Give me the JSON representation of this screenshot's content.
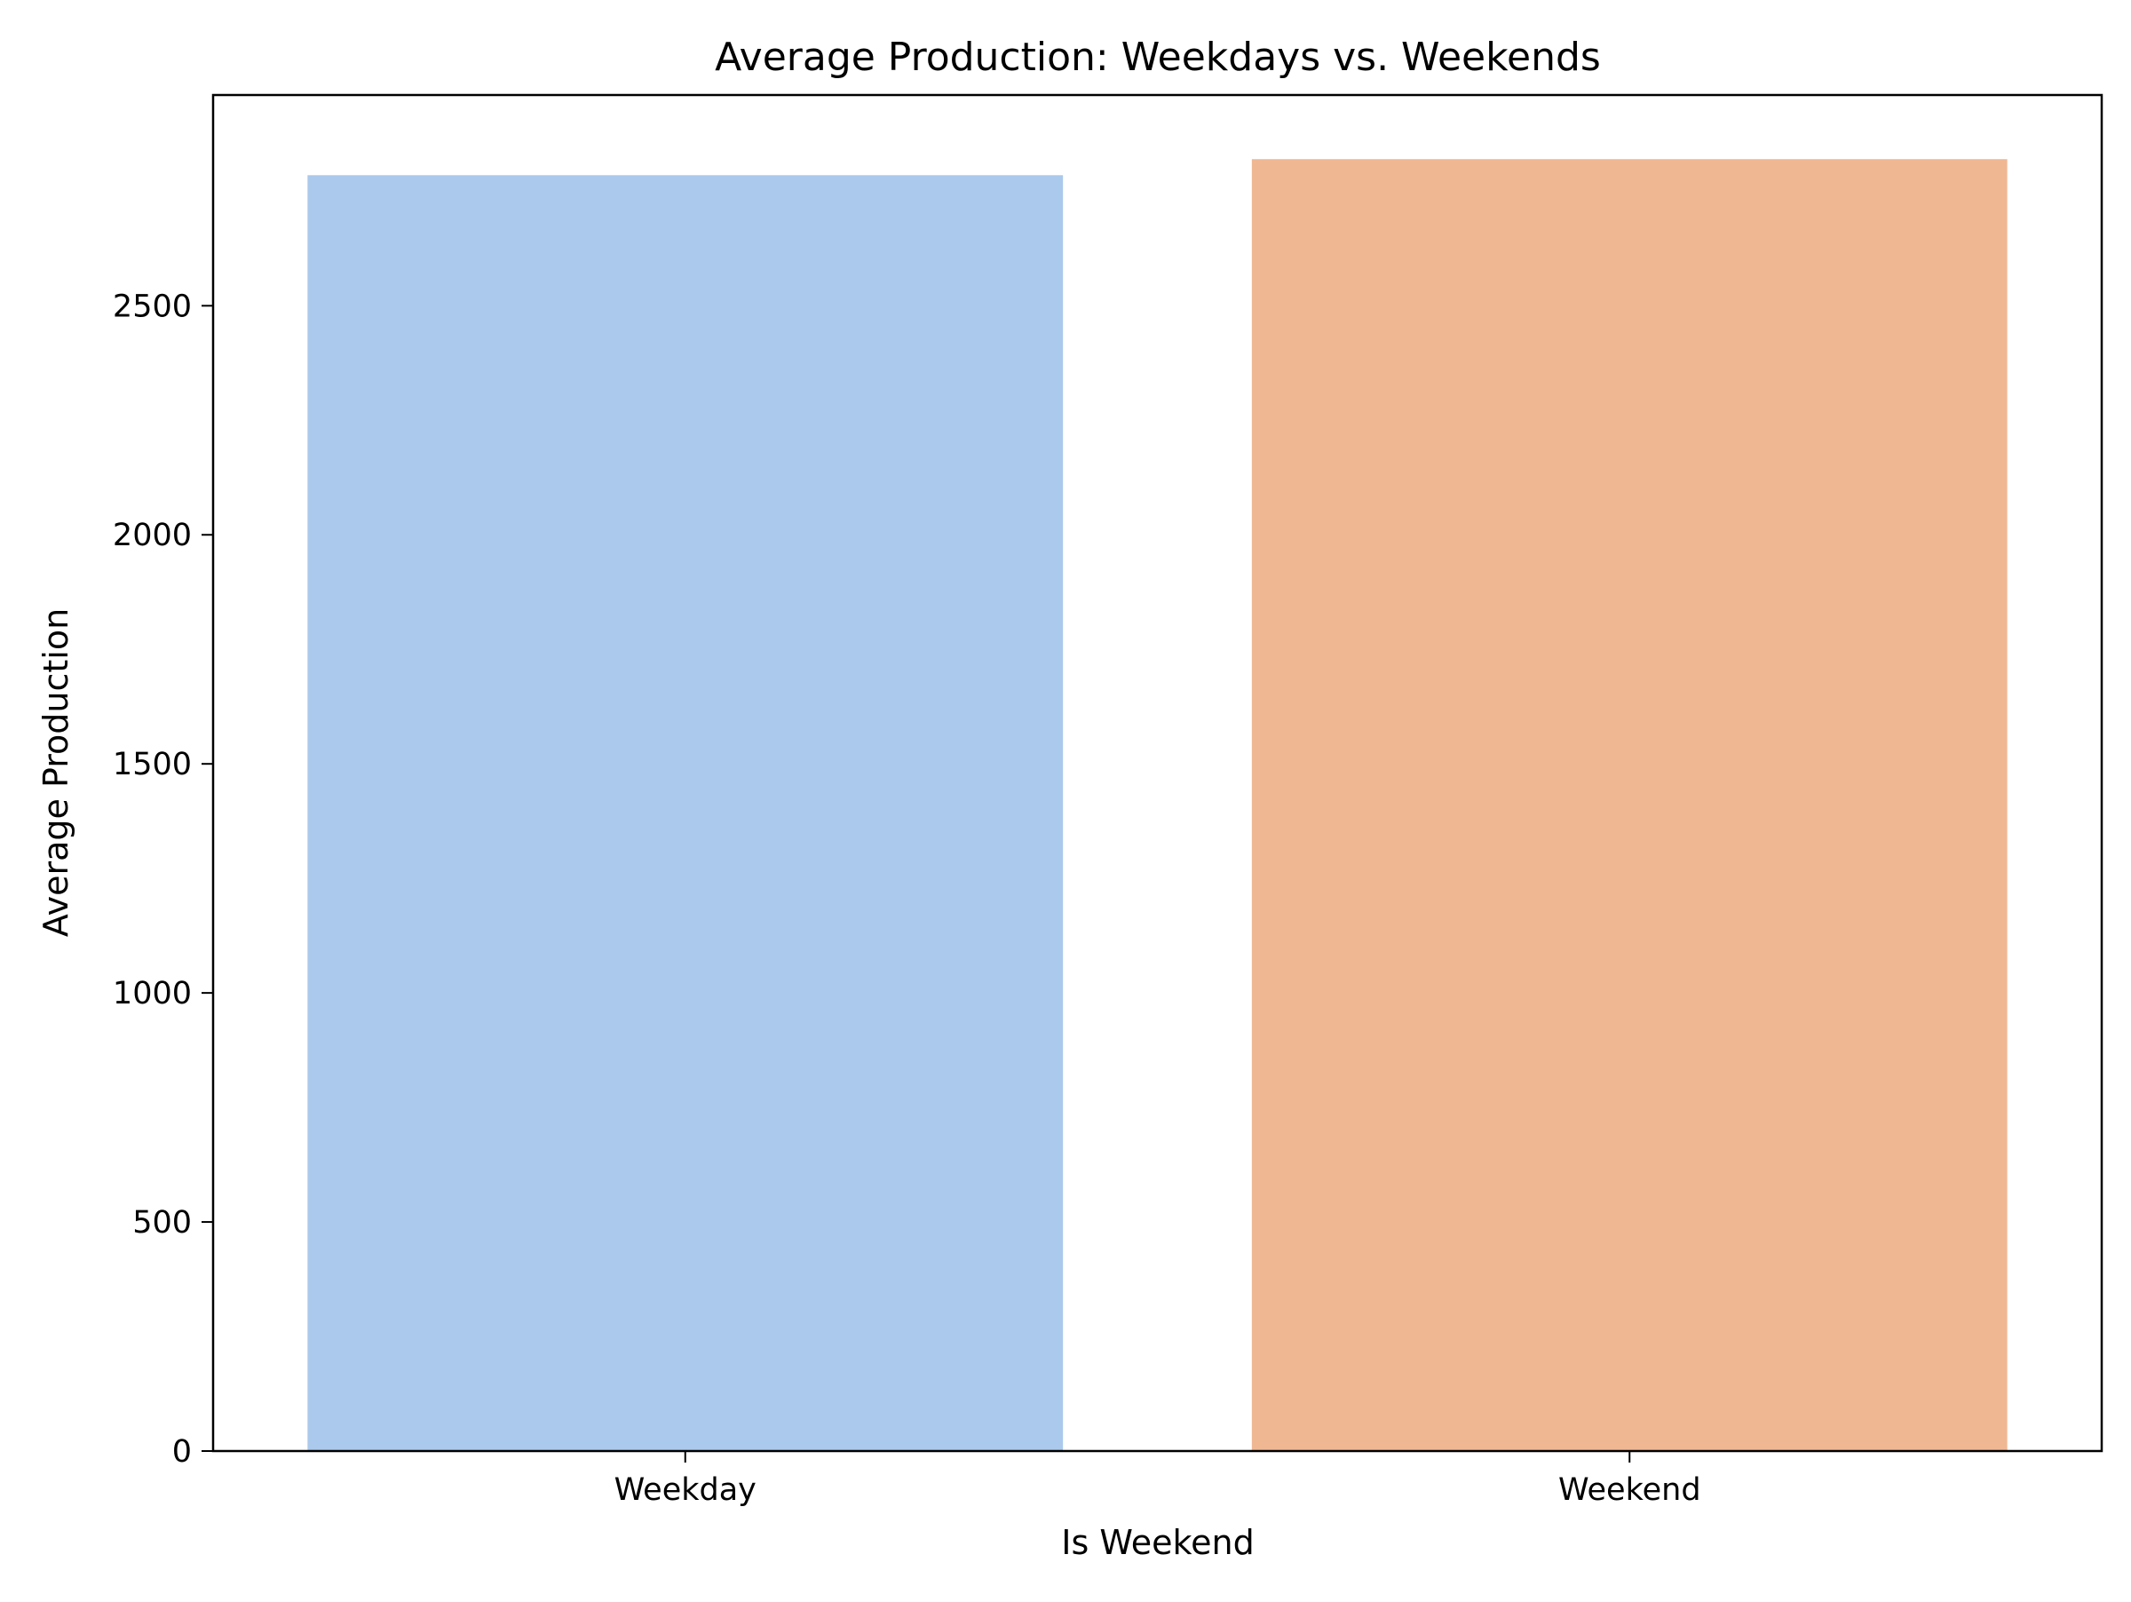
{
  "chart_data": {
    "type": "bar",
    "title": "Average Production: Weekdays vs. Weekends",
    "xlabel": "Is Weekend",
    "ylabel": "Average Production",
    "categories": [
      "Weekday",
      "Weekend"
    ],
    "values": [
      2785,
      2820
    ],
    "colors": [
      "#abc9ec",
      "#f0b793"
    ],
    "ylim": [
      0,
      2960
    ],
    "yticks": [
      0,
      500,
      1000,
      1500,
      2000,
      2500
    ],
    "grid": false,
    "legend": "none"
  }
}
